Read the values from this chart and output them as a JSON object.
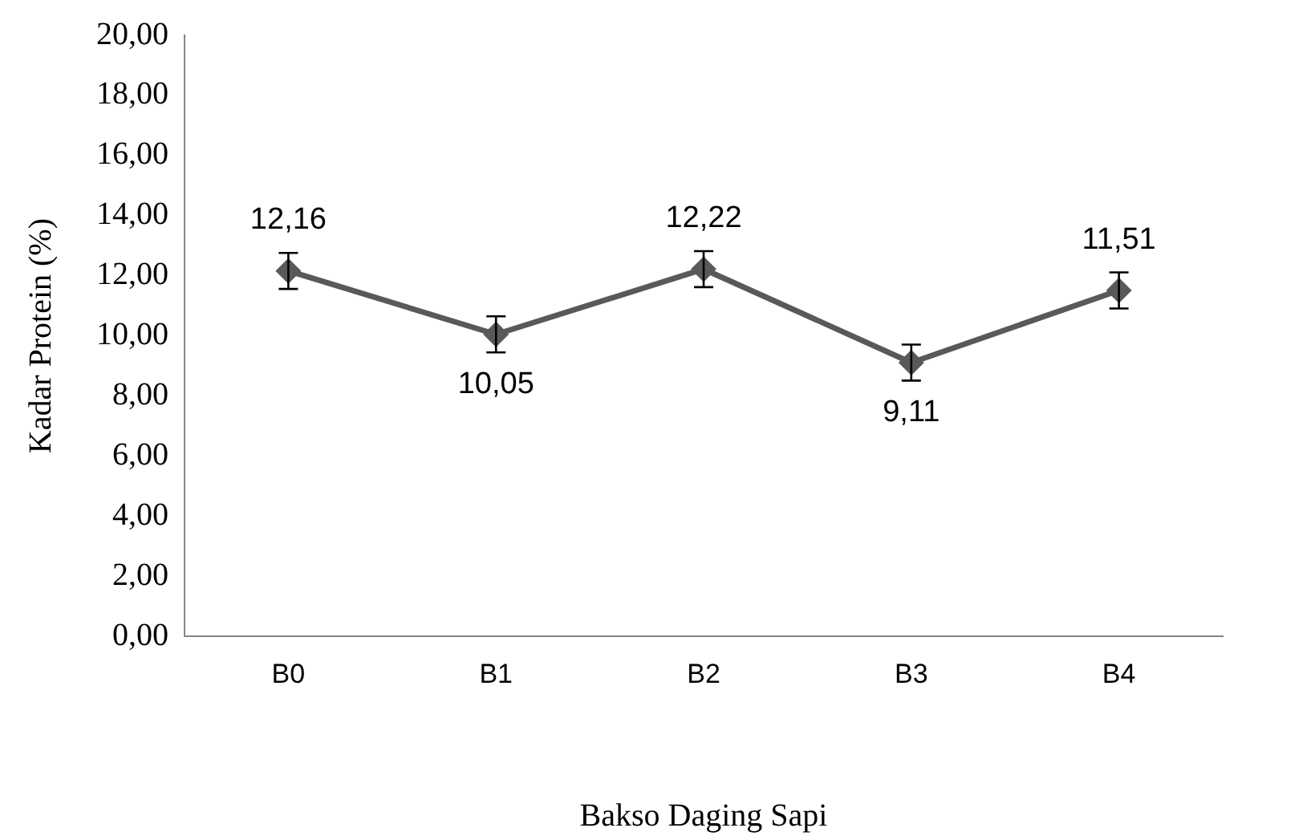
{
  "chart_data": {
    "type": "line",
    "xlabel": "Bakso Daging Sapi",
    "ylabel": "Kadar Protein (%)",
    "categories": [
      "B0",
      "B1",
      "B2",
      "B3",
      "B4"
    ],
    "series": [
      {
        "color": "#595959",
        "values": [
          12.16,
          10.05,
          12.22,
          9.11,
          11.51
        ],
        "errors": [
          0.6,
          0.6,
          0.6,
          0.6,
          0.6
        ],
        "value_labels": [
          "12,16",
          "10,05",
          "12,22",
          "9,11",
          "11,51"
        ]
      }
    ],
    "ylim": [
      0,
      20
    ],
    "yticks": [
      {
        "value": 0,
        "label": "0,00"
      },
      {
        "value": 2,
        "label": "2,00"
      },
      {
        "value": 4,
        "label": "4,00"
      },
      {
        "value": 6,
        "label": "6,00"
      },
      {
        "value": 8,
        "label": "8,00"
      },
      {
        "value": 10,
        "label": "10,00"
      },
      {
        "value": 12,
        "label": "12,00"
      },
      {
        "value": 14,
        "label": "14,00"
      },
      {
        "value": 16,
        "label": "16,00"
      },
      {
        "value": 18,
        "label": "18,00"
      },
      {
        "value": 20,
        "label": "20,00"
      }
    ],
    "grid": false,
    "legend": false,
    "marker": "diamond",
    "line_style": "solid"
  }
}
